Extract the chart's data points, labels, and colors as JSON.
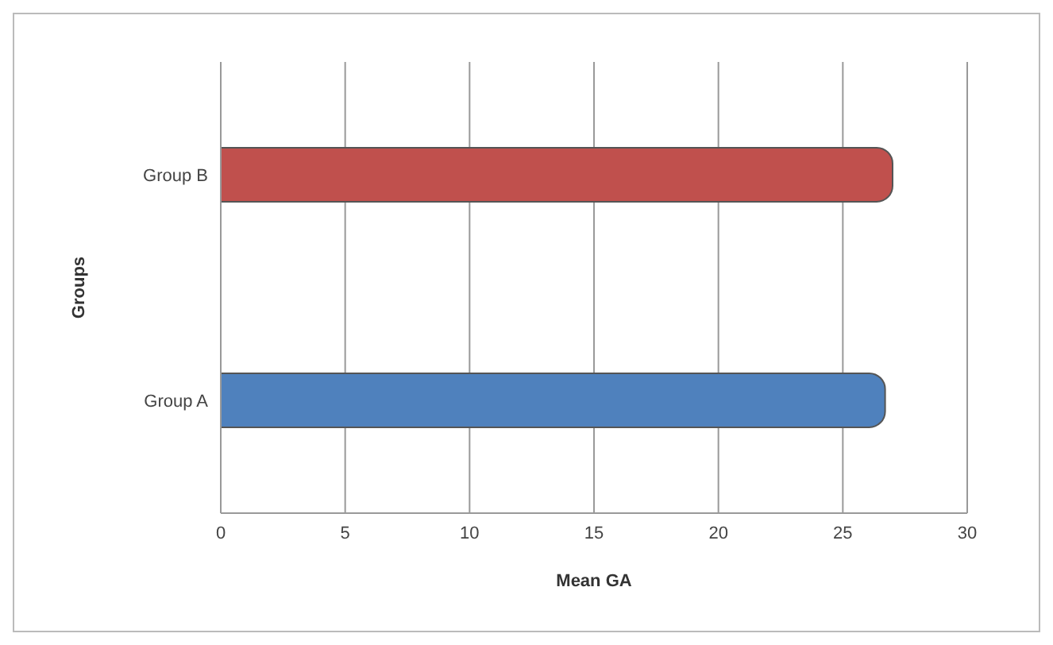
{
  "chart_data": {
    "type": "bar",
    "orientation": "horizontal",
    "categories": [
      "Group B",
      "Group A"
    ],
    "values": [
      27,
      26.7
    ],
    "colors": [
      "#c0504d",
      "#4f81bd"
    ],
    "xlabel": "Mean GA",
    "ylabel": "Groups",
    "xlim": [
      0,
      30
    ],
    "xticks": [
      0,
      5,
      10,
      15,
      20,
      25,
      30
    ],
    "grid": "x"
  }
}
